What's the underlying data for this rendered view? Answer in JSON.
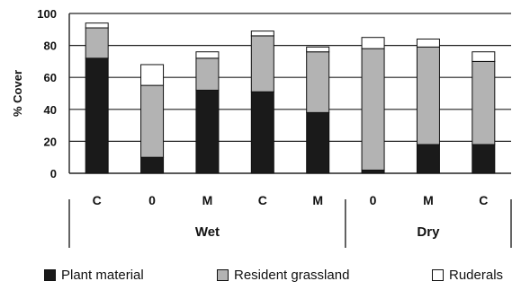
{
  "chart_data": {
    "type": "bar",
    "stacked": true,
    "ylabel": "% Cover",
    "ylim": [
      0,
      100
    ],
    "yticks": [
      0,
      20,
      40,
      60,
      80,
      100
    ],
    "grid": true,
    "legend_position": "bottom",
    "categories": [
      "C",
      "0",
      "M",
      "C",
      "M",
      "0",
      "M",
      "C"
    ],
    "groups": [
      {
        "label": "Wet",
        "count": 5
      },
      {
        "label": "Dry",
        "count": 3
      }
    ],
    "series": [
      {
        "name": "Plant material",
        "color": "#1a1a1a",
        "values": [
          72,
          10,
          52,
          51,
          38,
          2,
          18,
          18
        ]
      },
      {
        "name": "Resident grassland",
        "color": "#b3b3b3",
        "values": [
          19,
          45,
          20,
          35,
          38,
          76,
          61,
          52
        ]
      },
      {
        "name": "Ruderals",
        "color": "#ffffff",
        "values": [
          3,
          13,
          4,
          3,
          3,
          7,
          5,
          6
        ]
      }
    ]
  }
}
